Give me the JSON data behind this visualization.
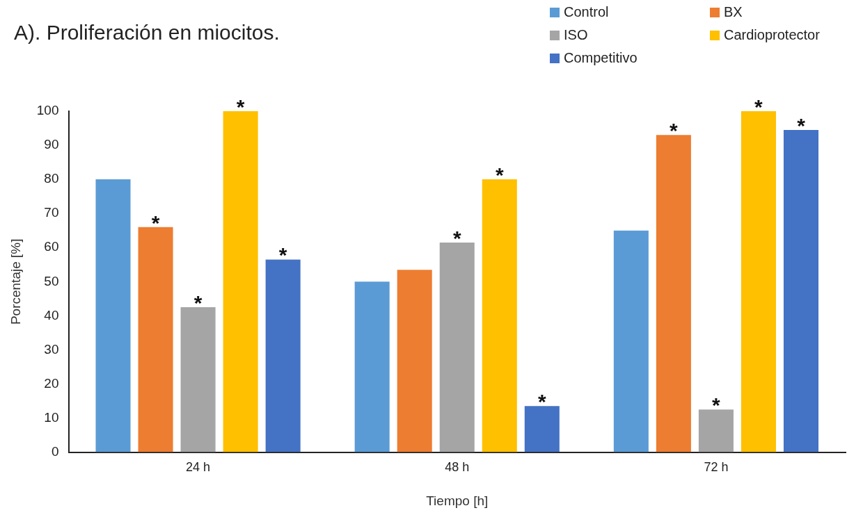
{
  "chart_data": {
    "type": "bar",
    "title": "A). Proliferación en miocitos.",
    "xlabel": "Tiempo [h]",
    "ylabel": "Porcentaje [%]",
    "categories": [
      "24 h",
      "48 h",
      "72 h"
    ],
    "series": [
      {
        "name": "Control",
        "color": "#5b9bd5",
        "values": [
          80,
          50,
          65
        ],
        "value_labels": [
          null,
          null,
          null
        ]
      },
      {
        "name": "BX",
        "color": "#ed7d31",
        "values": [
          66,
          53.5,
          93
        ],
        "value_labels": [
          "*",
          null,
          "*"
        ]
      },
      {
        "name": "ISO",
        "color": "#a5a5a5",
        "values": [
          42.5,
          61.5,
          12.5
        ],
        "value_labels": [
          "*",
          "*",
          "*"
        ]
      },
      {
        "name": "Cardioprotector",
        "color": "#ffc000",
        "values": [
          100,
          80,
          100
        ],
        "value_labels": [
          "*",
          "*",
          "*"
        ]
      },
      {
        "name": "Competitivo",
        "color": "#4472c4",
        "values": [
          56.5,
          13.5,
          94.5
        ],
        "value_labels": [
          "*",
          "*",
          "*"
        ]
      }
    ],
    "ylim": [
      0,
      100
    ],
    "yticks": [
      0,
      10,
      20,
      30,
      40,
      50,
      60,
      70,
      80,
      90,
      100
    ],
    "legend": "top right"
  }
}
